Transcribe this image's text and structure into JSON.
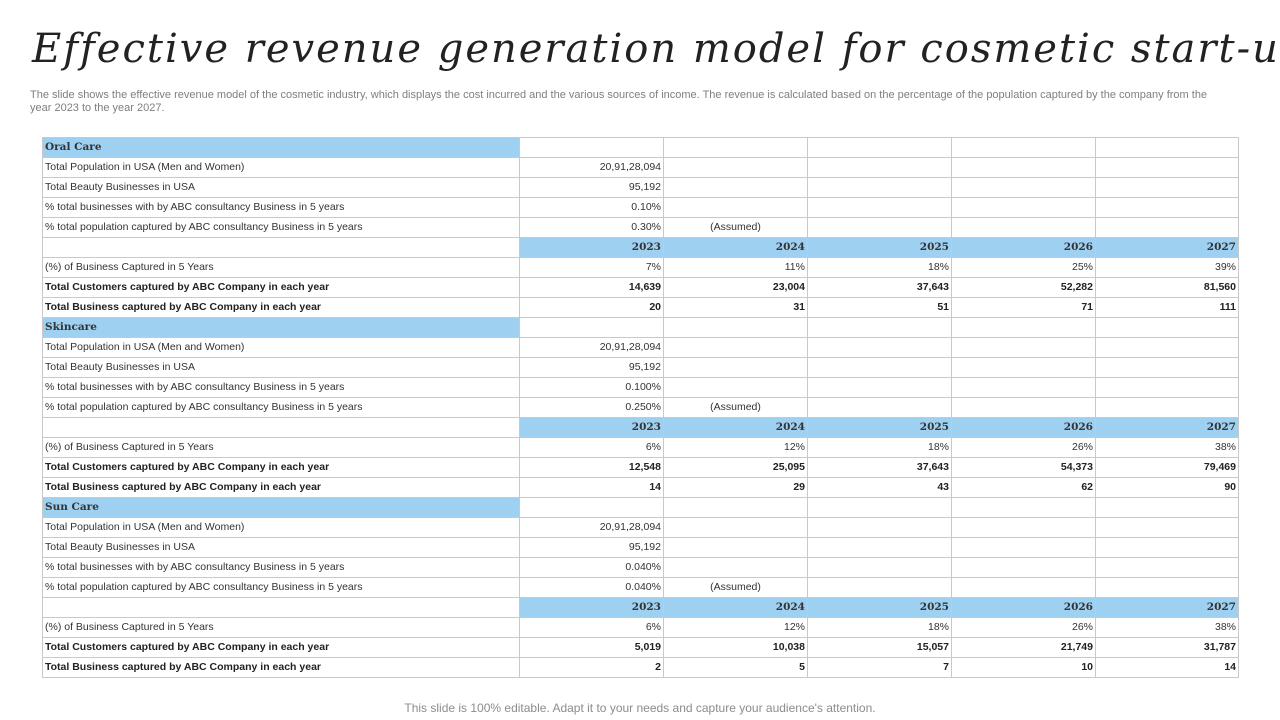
{
  "title": "Effective revenue generation model for cosmetic start-up",
  "subtitle": "The slide shows the effective revenue model of the cosmetic industry, which displays the cost incurred and the various sources of income. The revenue is calculated based on the percentage of the population captured by the company from the year 2023 to the year 2027.",
  "footer": "This slide is 100% editable. Adapt it to your needs and capture your audience's attention.",
  "years": [
    "2023",
    "2024",
    "2025",
    "2026",
    "2027"
  ],
  "sections": [
    {
      "name": "Oral Care",
      "inputs": [
        {
          "label": "Total Population  in USA (Men and Women)",
          "value": "20,91,28,094",
          "note": ""
        },
        {
          "label": "Total Beauty Businesses in USA",
          "value": "95,192",
          "note": ""
        },
        {
          "label": "% total businesses with by ABC consultancy Business in 5 years",
          "value": "0.10%",
          "note": ""
        },
        {
          "label": "% total population captured by ABC consultancy Business in 5 years",
          "value": "0.30%",
          "note": "(Assumed)"
        }
      ],
      "metrics": [
        {
          "label": "(%) of Business Captured in 5 Years",
          "bold": false,
          "values": [
            "7%",
            "11%",
            "18%",
            "25%",
            "39%"
          ]
        },
        {
          "label": "Total Customers captured by ABC Company in each year",
          "bold": true,
          "values": [
            "14,639",
            "23,004",
            "37,643",
            "52,282",
            "81,560"
          ]
        },
        {
          "label": "Total Business captured by ABC Company in each year",
          "bold": true,
          "values": [
            "20",
            "31",
            "51",
            "71",
            "111"
          ]
        }
      ]
    },
    {
      "name": "Skincare",
      "inputs": [
        {
          "label": "Total Population  in USA (Men and Women)",
          "value": "20,91,28,094",
          "note": ""
        },
        {
          "label": "Total Beauty Businesses in USA",
          "value": "95,192",
          "note": ""
        },
        {
          "label": "% total businesses with by ABC consultancy Business in 5 years",
          "value": "0.100%",
          "note": ""
        },
        {
          "label": "% total population captured by ABC consultancy Business in 5 years",
          "value": "0.250%",
          "note": "(Assumed)"
        }
      ],
      "metrics": [
        {
          "label": "(%) of Business Captured in 5 Years",
          "bold": false,
          "values": [
            "6%",
            "12%",
            "18%",
            "26%",
            "38%"
          ]
        },
        {
          "label": "Total Customers captured by ABC Company in each year",
          "bold": true,
          "values": [
            "12,548",
            "25,095",
            "37,643",
            "54,373",
            "79,469"
          ]
        },
        {
          "label": "Total Business captured by ABC Company in each year",
          "bold": true,
          "values": [
            "14",
            "29",
            "43",
            "62",
            "90"
          ]
        }
      ]
    },
    {
      "name": "Sun Care",
      "inputs": [
        {
          "label": "Total Population  in USA (Men and Women)",
          "value": "20,91,28,094",
          "note": ""
        },
        {
          "label": "Total Beauty Businesses in USA",
          "value": "95,192",
          "note": ""
        },
        {
          "label": "% total businesses with by ABC consultancy Business in 5 years",
          "value": "0.040%",
          "note": ""
        },
        {
          "label": "% total population captured by ABC consultancy Business in 5 years",
          "value": "0.040%",
          "note": "(Assumed)"
        }
      ],
      "metrics": [
        {
          "label": "(%) of Business Captured in 5 Years",
          "bold": false,
          "values": [
            "6%",
            "12%",
            "18%",
            "26%",
            "38%"
          ]
        },
        {
          "label": "Total Customers captured by ABC Company in each year",
          "bold": true,
          "values": [
            "5,019",
            "10,038",
            "15,057",
            "21,749",
            "31,787"
          ]
        },
        {
          "label": "Total Business captured by ABC Company in each year",
          "bold": true,
          "values": [
            "2",
            "5",
            "7",
            "10",
            "14"
          ]
        }
      ]
    }
  ]
}
